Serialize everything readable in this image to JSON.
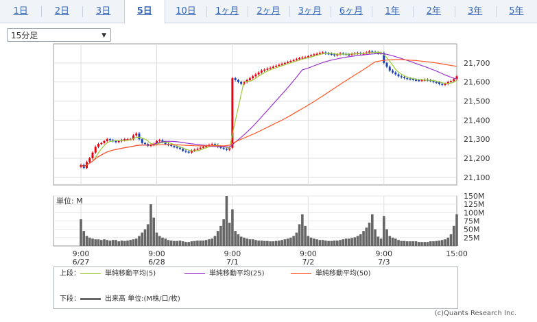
{
  "tabs": [
    {
      "label": "1日",
      "active": false
    },
    {
      "label": "2日",
      "active": false
    },
    {
      "label": "3日",
      "active": false
    },
    {
      "label": "5日",
      "active": true
    },
    {
      "label": "10日",
      "active": false
    },
    {
      "label": "1ヶ月",
      "active": false
    },
    {
      "label": "2ヶ月",
      "active": false
    },
    {
      "label": "3ヶ月",
      "active": false
    },
    {
      "label": "6ヶ月",
      "active": false
    },
    {
      "label": "1年",
      "active": false
    },
    {
      "label": "2年",
      "active": false
    },
    {
      "label": "3年",
      "active": false
    },
    {
      "label": "5年",
      "active": false
    }
  ],
  "interval_select": {
    "value": "15分足",
    "arrow": "▼"
  },
  "legend": {
    "upper_label": "上段：",
    "lower_label": "下段：",
    "lower_text": "出来高 単位:(M株/口/枚)",
    "colors": {
      "ma5": "#99cc33",
      "ma25": "#9933cc",
      "ma50": "#ff5522",
      "volume": "#666666"
    }
  },
  "credit": "(c)Quants Research Inc.",
  "chart_data": [
    {
      "type": "candlestick",
      "y_tick_labels": [
        "21,100",
        "21,200",
        "21,300",
        "21,400",
        "21,500",
        "21,600",
        "21,700"
      ],
      "ylim": [
        21060,
        21800
      ],
      "x_tick_labels": [
        {
          "time": "9:00",
          "date": "6/27"
        },
        {
          "time": "9:00",
          "date": "6/28"
        },
        {
          "time": "9:00",
          "date": "7/1"
        },
        {
          "time": "9:00",
          "date": "7/2"
        },
        {
          "time": "9:00",
          "date": "7/3"
        },
        {
          "time": "15:00",
          "date": ""
        }
      ],
      "bars_per_day": 26,
      "days": 5,
      "close": [
        21165,
        21150,
        21180,
        21200,
        21230,
        21260,
        21275,
        21280,
        21290,
        21300,
        21295,
        21290,
        21285,
        21290,
        21295,
        21300,
        21300,
        21300,
        21320,
        21330,
        21300,
        21280,
        21275,
        21265,
        21270,
        21275,
        21290,
        21295,
        21285,
        21275,
        21270,
        21265,
        21260,
        21255,
        21250,
        21240,
        21235,
        21230,
        21240,
        21245,
        21250,
        21255,
        21260,
        21265,
        21270,
        21275,
        21270,
        21260,
        21255,
        21250,
        21245,
        21255,
        21620,
        21610,
        21600,
        21590,
        21600,
        21610,
        21620,
        21630,
        21640,
        21650,
        21660,
        21665,
        21670,
        21675,
        21680,
        21685,
        21690,
        21695,
        21700,
        21705,
        21710,
        21715,
        21720,
        21725,
        21728,
        21730,
        21735,
        21740,
        21745,
        21748,
        21752,
        21755,
        21750,
        21748,
        21745,
        21740,
        21745,
        21750,
        21748,
        21745,
        21742,
        21748,
        21750,
        21752,
        21748,
        21750,
        21755,
        21760,
        21758,
        21755,
        21750,
        21752,
        21700,
        21680,
        21660,
        21650,
        21640,
        21630,
        21625,
        21620,
        21618,
        21615,
        21612,
        21610,
        21608,
        21610,
        21612,
        21610,
        21605,
        21600,
        21598,
        21590,
        21585,
        21590,
        21600,
        21605,
        21615,
        21630
      ],
      "series": [
        {
          "name": "単純移動平均(5)",
          "style": "line"
        },
        {
          "name": "単純移動平均(25)",
          "style": "line"
        },
        {
          "name": "単純移動平均(50)",
          "style": "line"
        }
      ]
    },
    {
      "type": "bar",
      "title": "単位: M",
      "y_tick_labels": [
        "150M",
        "125M",
        "100M",
        "75M",
        "50M",
        "25M"
      ],
      "ylim": [
        0,
        150
      ],
      "values": [
        80,
        45,
        30,
        25,
        22,
        20,
        20,
        18,
        20,
        18,
        16,
        18,
        18,
        14,
        16,
        15,
        16,
        18,
        20,
        22,
        30,
        40,
        50,
        65,
        125,
        85,
        40,
        30,
        25,
        22,
        18,
        16,
        15,
        15,
        16,
        14,
        12,
        12,
        14,
        15,
        16,
        16,
        16,
        18,
        20,
        22,
        30,
        45,
        60,
        80,
        150,
        70,
        110,
        45,
        35,
        28,
        25,
        22,
        20,
        20,
        18,
        16,
        16,
        15,
        15,
        14,
        14,
        15,
        16,
        18,
        20,
        22,
        25,
        30,
        40,
        65,
        95,
        60,
        30,
        25,
        22,
        20,
        18,
        18,
        16,
        15,
        15,
        16,
        16,
        18,
        20,
        22,
        22,
        24,
        26,
        30,
        35,
        45,
        55,
        70,
        95,
        50,
        28,
        22,
        90,
        50,
        30,
        25,
        22,
        18,
        15,
        15,
        14,
        14,
        14,
        14,
        12,
        12,
        12,
        12,
        14,
        14,
        15,
        16,
        18,
        20,
        25,
        35,
        60,
        95
      ]
    }
  ]
}
